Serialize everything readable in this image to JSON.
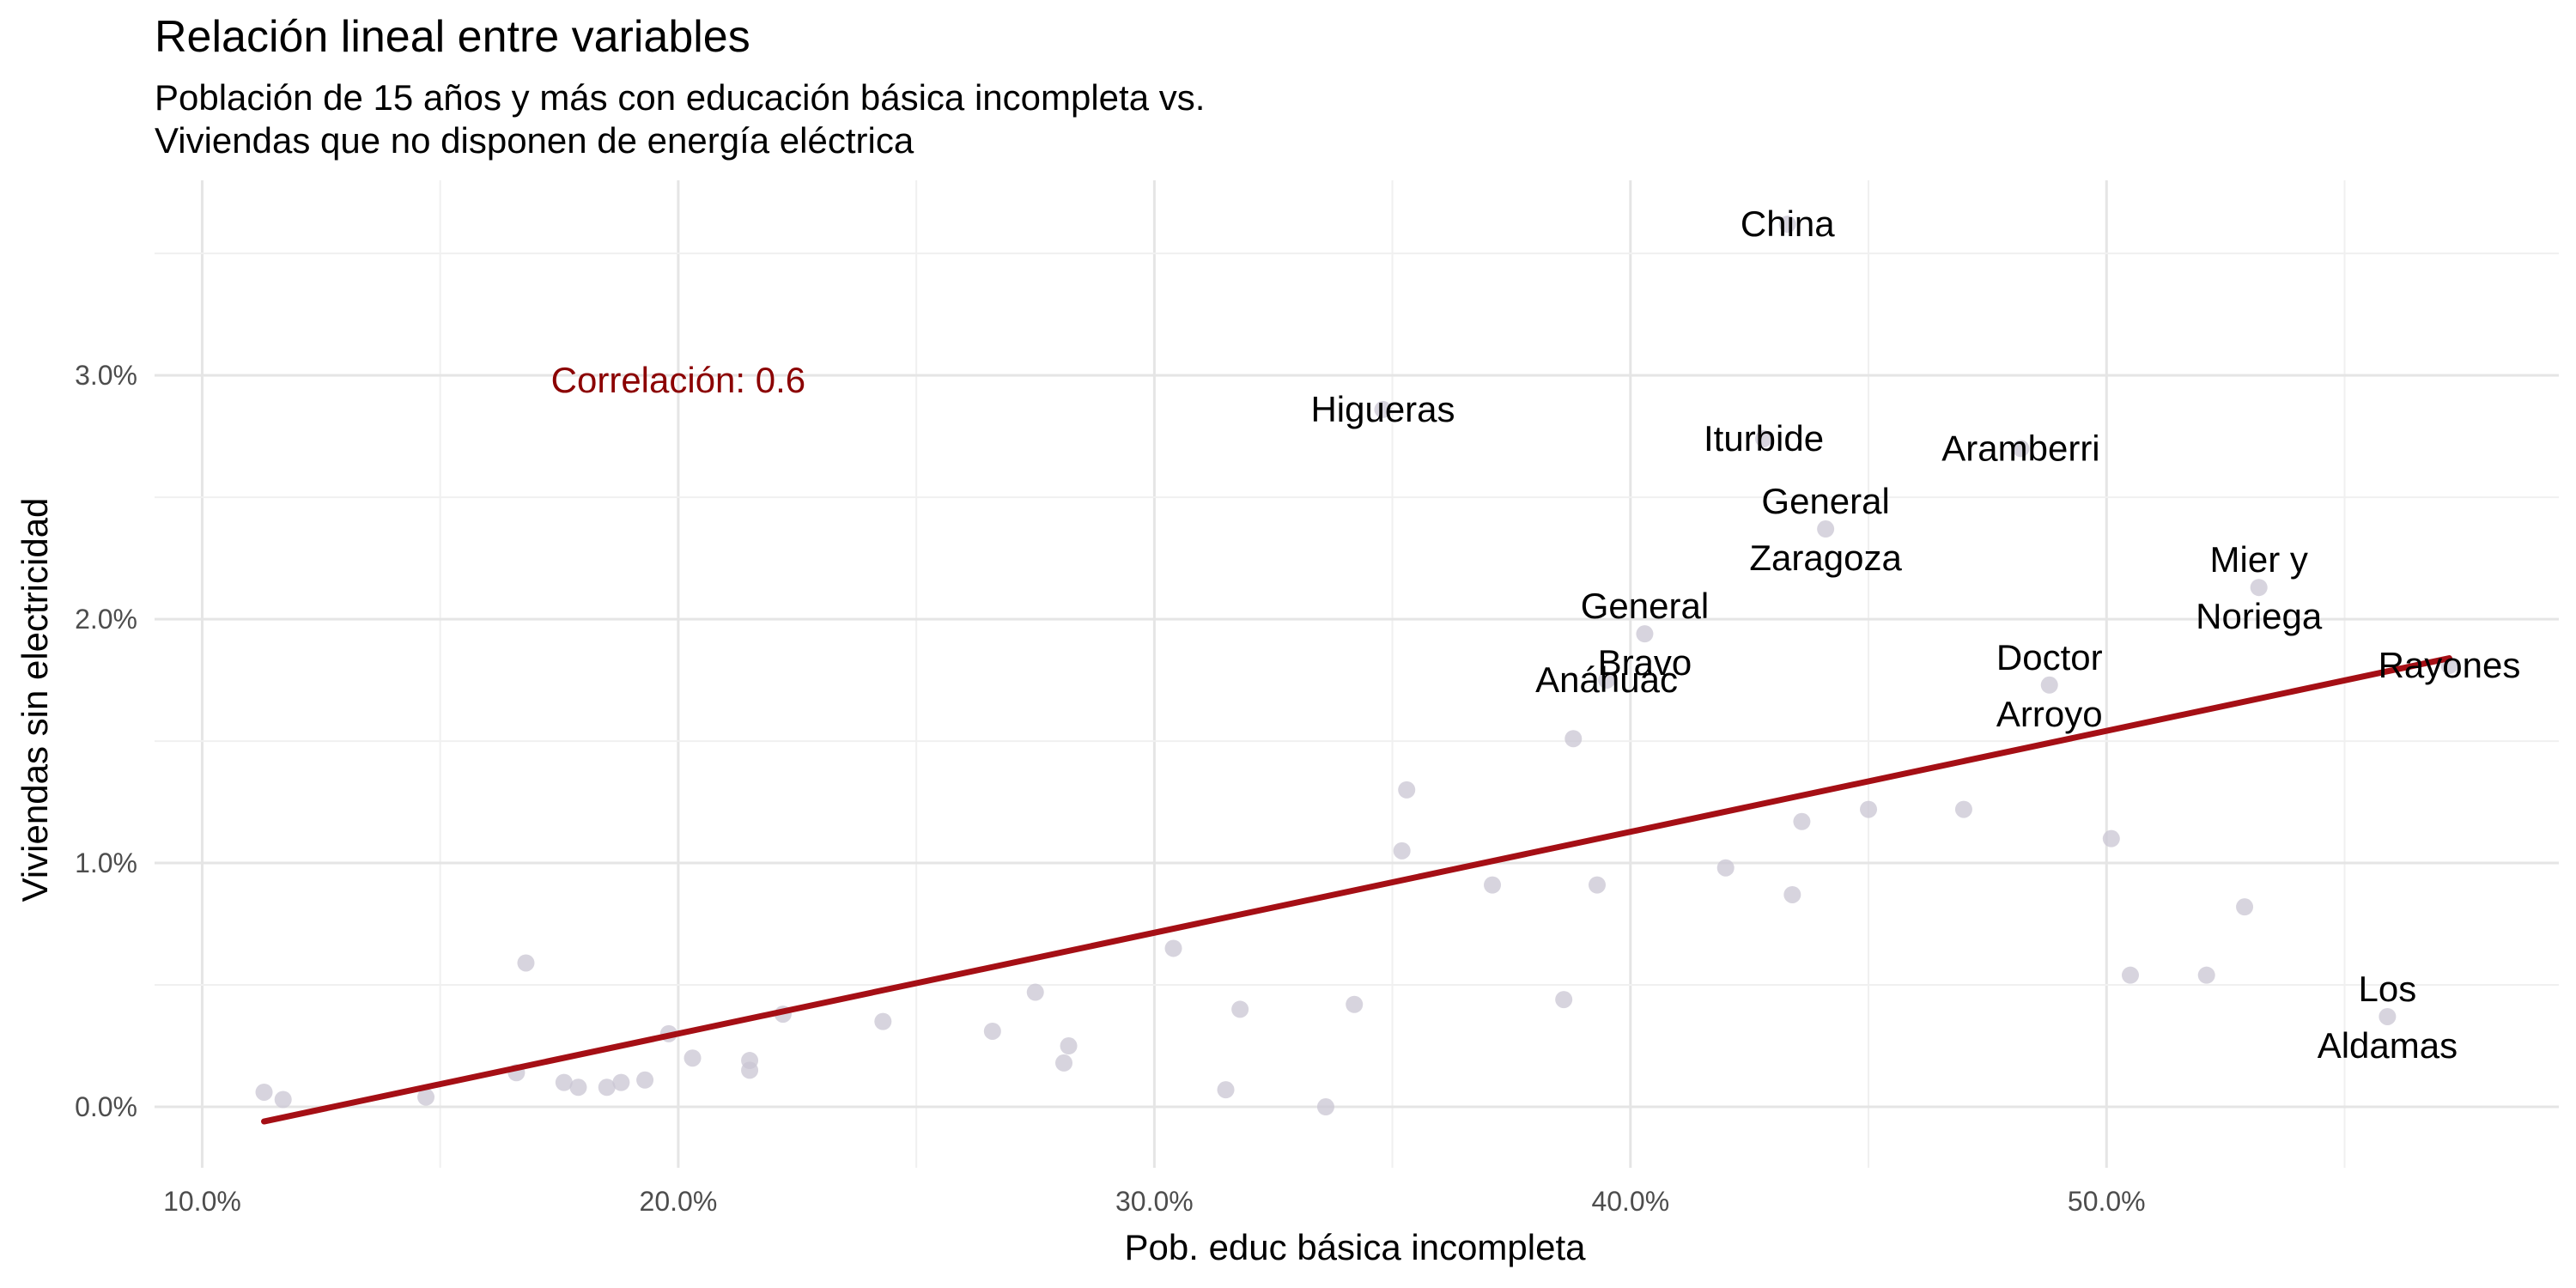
{
  "chart_data": {
    "type": "scatter",
    "title": "Relación lineal entre variables",
    "subtitle": [
      "Población de 15 años y más con educación básica incompleta vs.",
      "Viviendas que no disponen de energía eléctrica"
    ],
    "xlabel": "Pob. educ básica incompleta",
    "ylabel": "Viviendas sin electricidad",
    "xlim": [
      9.0,
      59.5
    ],
    "ylim": [
      -0.25,
      3.8
    ],
    "x_ticks": [
      10,
      20,
      30,
      40,
      50
    ],
    "x_tick_labels": [
      "10.0%",
      "20.0%",
      "30.0%",
      "40.0%",
      "50.0%"
    ],
    "y_ticks": [
      0,
      1,
      2,
      3
    ],
    "y_tick_labels": [
      "0.0%",
      "1.0%",
      "2.0%",
      "3.0%"
    ],
    "grid": true,
    "point_color": "#c9c6d3",
    "line_color": "#a50f15",
    "annotation": {
      "text": "Correlación: 0.6",
      "x": 20.0,
      "y": 2.98,
      "color": "#8b0000"
    },
    "regression_line": {
      "x": [
        11.3,
        57.2
      ],
      "y": [
        -0.06,
        1.84
      ]
    },
    "points": [
      {
        "x": 11.3,
        "y": 0.06
      },
      {
        "x": 11.7,
        "y": 0.03
      },
      {
        "x": 14.7,
        "y": 0.04
      },
      {
        "x": 16.6,
        "y": 0.14
      },
      {
        "x": 16.8,
        "y": 0.59
      },
      {
        "x": 17.6,
        "y": 0.1
      },
      {
        "x": 17.9,
        "y": 0.08
      },
      {
        "x": 18.5,
        "y": 0.08
      },
      {
        "x": 18.8,
        "y": 0.1
      },
      {
        "x": 19.3,
        "y": 0.11
      },
      {
        "x": 19.8,
        "y": 0.3
      },
      {
        "x": 20.3,
        "y": 0.2
      },
      {
        "x": 21.5,
        "y": 0.19
      },
      {
        "x": 21.5,
        "y": 0.15
      },
      {
        "x": 22.2,
        "y": 0.38
      },
      {
        "x": 24.3,
        "y": 0.35
      },
      {
        "x": 26.6,
        "y": 0.31
      },
      {
        "x": 27.5,
        "y": 0.47
      },
      {
        "x": 28.2,
        "y": 0.25
      },
      {
        "x": 28.1,
        "y": 0.18
      },
      {
        "x": 30.4,
        "y": 0.65
      },
      {
        "x": 31.5,
        "y": 0.07
      },
      {
        "x": 31.8,
        "y": 0.4
      },
      {
        "x": 33.6,
        "y": 0.0
      },
      {
        "x": 34.2,
        "y": 0.42
      },
      {
        "x": 35.2,
        "y": 1.05
      },
      {
        "x": 35.3,
        "y": 1.3
      },
      {
        "x": 37.1,
        "y": 0.91
      },
      {
        "x": 38.6,
        "y": 0.44
      },
      {
        "x": 38.8,
        "y": 1.51
      },
      {
        "x": 39.3,
        "y": 0.91
      },
      {
        "x": 42.0,
        "y": 0.98
      },
      {
        "x": 43.4,
        "y": 0.87
      },
      {
        "x": 43.6,
        "y": 1.17
      },
      {
        "x": 45.0,
        "y": 1.22
      },
      {
        "x": 47.0,
        "y": 1.22
      },
      {
        "x": 50.1,
        "y": 1.1
      },
      {
        "x": 50.5,
        "y": 0.54
      },
      {
        "x": 52.1,
        "y": 0.54
      },
      {
        "x": 52.9,
        "y": 0.82
      },
      {
        "x": 43.3,
        "y": 3.62,
        "label": [
          "China"
        ]
      },
      {
        "x": 34.8,
        "y": 2.86,
        "label": [
          "Higueras"
        ]
      },
      {
        "x": 42.8,
        "y": 2.74,
        "label": [
          "Iturbide"
        ]
      },
      {
        "x": 48.2,
        "y": 2.7,
        "label": [
          "Aramberri"
        ]
      },
      {
        "x": 44.1,
        "y": 2.37,
        "label": [
          "General",
          "Zaragoza"
        ]
      },
      {
        "x": 53.2,
        "y": 2.13,
        "label": [
          "Mier y",
          "Noriega"
        ]
      },
      {
        "x": 40.3,
        "y": 1.94,
        "label": [
          "General",
          "Bravo"
        ]
      },
      {
        "x": 39.5,
        "y": 1.75,
        "label": [
          "Anáhuac"
        ]
      },
      {
        "x": 48.8,
        "y": 1.73,
        "label": [
          "Doctor",
          "Arroyo"
        ]
      },
      {
        "x": 57.2,
        "y": 1.81,
        "label": [
          "Rayones"
        ]
      },
      {
        "x": 55.9,
        "y": 0.37,
        "label": [
          "Los",
          "Aldamas"
        ]
      }
    ]
  }
}
